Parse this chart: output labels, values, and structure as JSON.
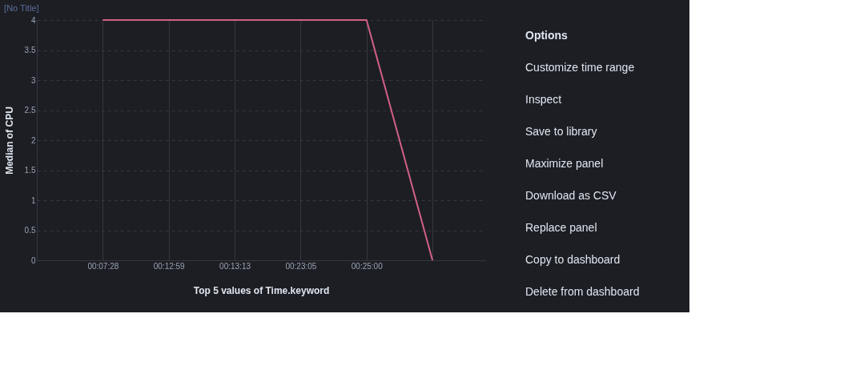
{
  "chart_data": {
    "type": "line",
    "title": "[No Title]",
    "xlabel": "Top 5 values of Time.keyword",
    "ylabel": "Median of CPU",
    "categories": [
      "00:07:28",
      "00:12:59",
      "00:13:13",
      "00:23:05",
      "00:25:00",
      null
    ],
    "series": [
      {
        "color": "#d36086",
        "values": [
          4,
          4,
          4,
          4,
          4,
          0
        ]
      }
    ],
    "ylim": [
      0,
      4
    ],
    "yticks": [
      0,
      0.5,
      1,
      1.5,
      2,
      2.5,
      3,
      3.5,
      4
    ],
    "grid": true,
    "legend": false,
    "marker": "none",
    "line_style": "solid",
    "annotations": [
      "Options",
      "Customize time range",
      "Inspect",
      "Save to library",
      "Maximize panel",
      "Download as CSV",
      "Replace panel",
      "Copy to dashboard",
      "Delete from dashboard"
    ]
  }
}
